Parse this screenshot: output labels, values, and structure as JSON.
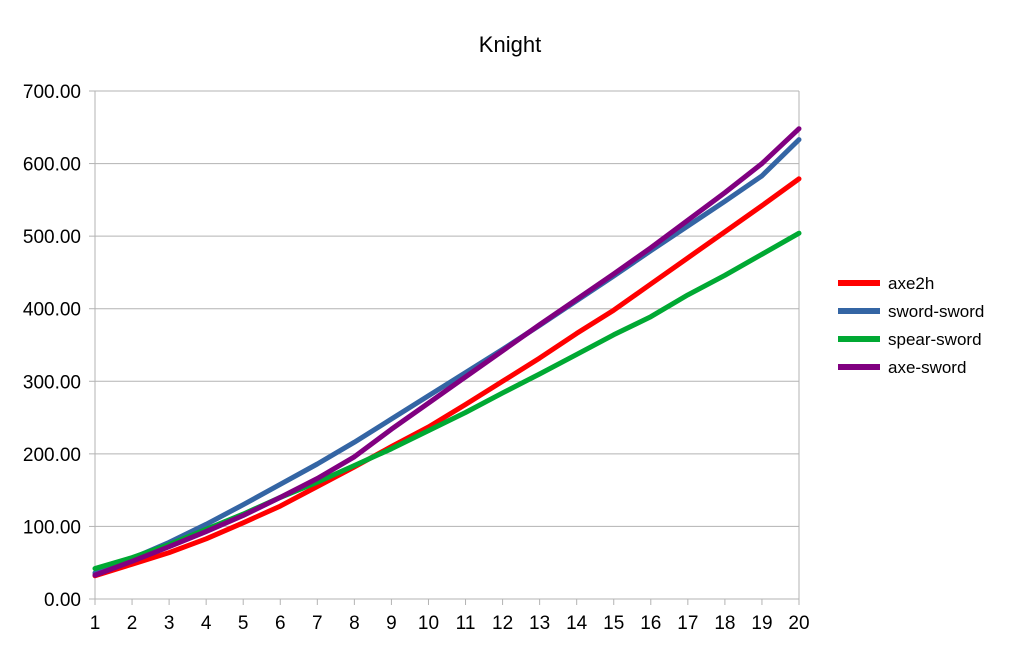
{
  "chart_data": {
    "type": "line",
    "title": "Knight",
    "xlabel": "",
    "ylabel": "",
    "categories": [
      "1",
      "2",
      "3",
      "4",
      "5",
      "6",
      "7",
      "8",
      "9",
      "10",
      "11",
      "12",
      "13",
      "14",
      "15",
      "16",
      "17",
      "18",
      "19",
      "20"
    ],
    "ylim": [
      0,
      700
    ],
    "yticks": [
      0,
      100,
      200,
      300,
      400,
      500,
      600,
      700
    ],
    "ytick_labels": [
      "0.00",
      "100.00",
      "200.00",
      "300.00",
      "400.00",
      "500.00",
      "600.00",
      "700.00"
    ],
    "grid": true,
    "legend_position": "right",
    "series": [
      {
        "name": "axe2h",
        "color": "#ff0000",
        "values": [
          32,
          48,
          64,
          83,
          105,
          128,
          155,
          182,
          210,
          237,
          268,
          300,
          332,
          366,
          398,
          434,
          470,
          506,
          542,
          579
        ]
      },
      {
        "name": "sword-sword",
        "color": "#3465a4",
        "values": [
          36,
          56,
          78,
          103,
          130,
          158,
          186,
          216,
          248,
          280,
          312,
          344,
          377,
          411,
          445,
          480,
          514,
          548,
          583,
          633
        ]
      },
      {
        "name": "spear-sword",
        "color": "#00a933",
        "values": [
          42,
          57,
          75,
          96,
          117,
          140,
          161,
          184,
          207,
          232,
          257,
          284,
          310,
          337,
          364,
          389,
          419,
          446,
          475,
          504
        ]
      },
      {
        "name": "axe-sword",
        "color": "#800080",
        "values": [
          33,
          52,
          72,
          93,
          115,
          140,
          166,
          196,
          234,
          270,
          306,
          342,
          378,
          413,
          448,
          484,
          522,
          560,
          600,
          648
        ]
      }
    ]
  }
}
